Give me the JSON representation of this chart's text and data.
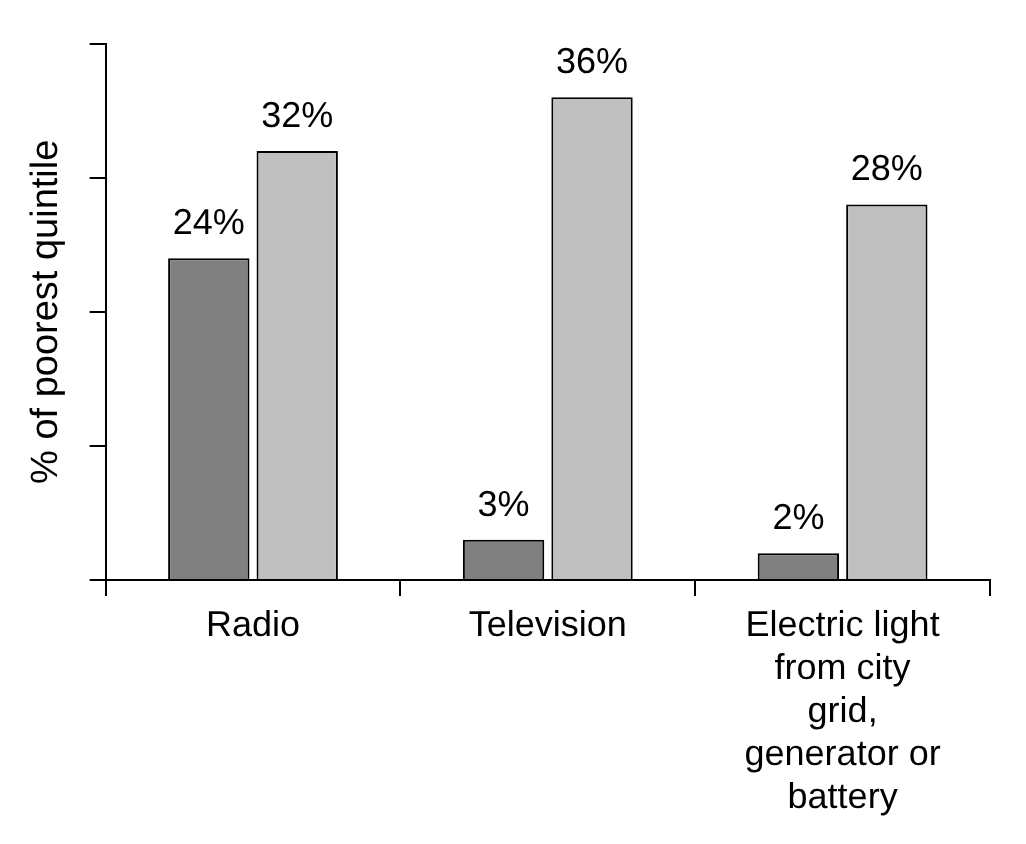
{
  "chart_data": {
    "type": "bar",
    "ylabel": "% of poorest quintile",
    "categories": [
      "Radio",
      "Television",
      "Electric light from city grid, generator or battery"
    ],
    "series": [
      {
        "color": "#808080",
        "values": [
          24,
          3,
          2
        ],
        "value_labels": [
          "24%",
          "3%",
          "2%"
        ]
      },
      {
        "color": "#c0c0c0",
        "values": [
          32,
          36,
          28
        ],
        "value_labels": [
          "32%",
          "36%",
          "28%"
        ]
      }
    ],
    "ylim": [
      0,
      40
    ],
    "grid": false,
    "legend": false
  }
}
